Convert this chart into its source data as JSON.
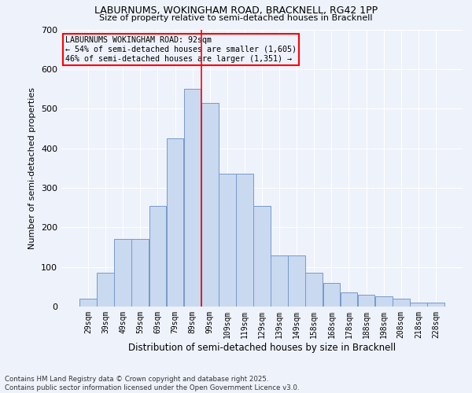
{
  "title_line1": "LABURNUMS, WOKINGHAM ROAD, BRACKNELL, RG42 1PP",
  "title_line2": "Size of property relative to semi-detached houses in Bracknell",
  "xlabel": "Distribution of semi-detached houses by size in Bracknell",
  "ylabel": "Number of semi-detached properties",
  "categories": [
    "29sqm",
    "39sqm",
    "49sqm",
    "59sqm",
    "69sqm",
    "79sqm",
    "89sqm",
    "99sqm",
    "109sqm",
    "119sqm",
    "129sqm",
    "139sqm",
    "149sqm",
    "158sqm",
    "168sqm",
    "178sqm",
    "188sqm",
    "198sqm",
    "208sqm",
    "218sqm",
    "228sqm"
  ],
  "values": [
    20,
    85,
    170,
    170,
    255,
    425,
    550,
    515,
    335,
    335,
    255,
    130,
    130,
    85,
    60,
    35,
    30,
    25,
    20,
    10,
    10
  ],
  "bar_color": "#c9d9f0",
  "bar_edge_color": "#7799cc",
  "vline_color": "red",
  "vline_position": 6.5,
  "annotation_title": "LABURNUMS WOKINGHAM ROAD: 92sqm",
  "annotation_line2": "← 54% of semi-detached houses are smaller (1,605)",
  "annotation_line3": "46% of semi-detached houses are larger (1,351) →",
  "annotation_box_color": "red",
  "background_color": "#eef2fb",
  "grid_color": "#ffffff",
  "footer_line1": "Contains HM Land Registry data © Crown copyright and database right 2025.",
  "footer_line2": "Contains public sector information licensed under the Open Government Licence v3.0.",
  "ylim": [
    0,
    700
  ],
  "yticks": [
    0,
    100,
    200,
    300,
    400,
    500,
    600,
    700
  ]
}
